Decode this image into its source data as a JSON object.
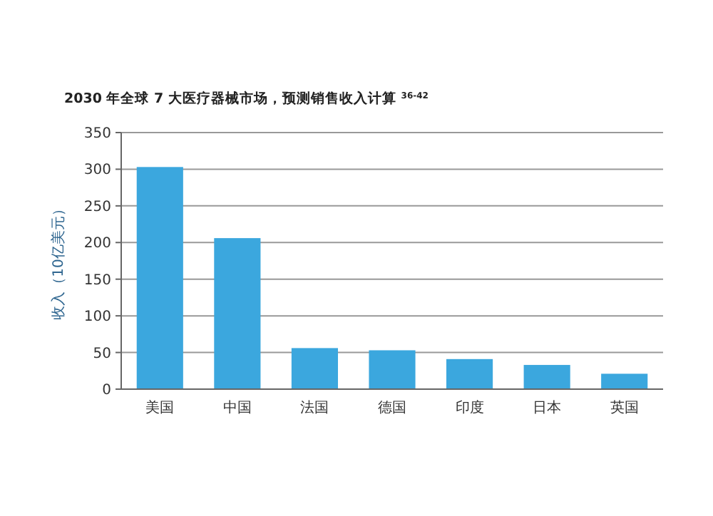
{
  "chart_data": {
    "type": "bar",
    "title": "2030 年全球 7 大医疗器械市场，预测销售收入计算 $^{36-42}$",
    "ylabel": "收入（10亿美元）",
    "categories": [
      "美国",
      "中国",
      "法国",
      "德国",
      "印度",
      "日本",
      "英国"
    ],
    "values": [
      303,
      206,
      56,
      53,
      41,
      33,
      21
    ],
    "color": "#3ba7de",
    "ylim": [
      0,
      350
    ],
    "yticks": [
      0,
      50,
      100,
      150,
      200,
      250,
      300,
      350
    ],
    "grid": "y"
  }
}
